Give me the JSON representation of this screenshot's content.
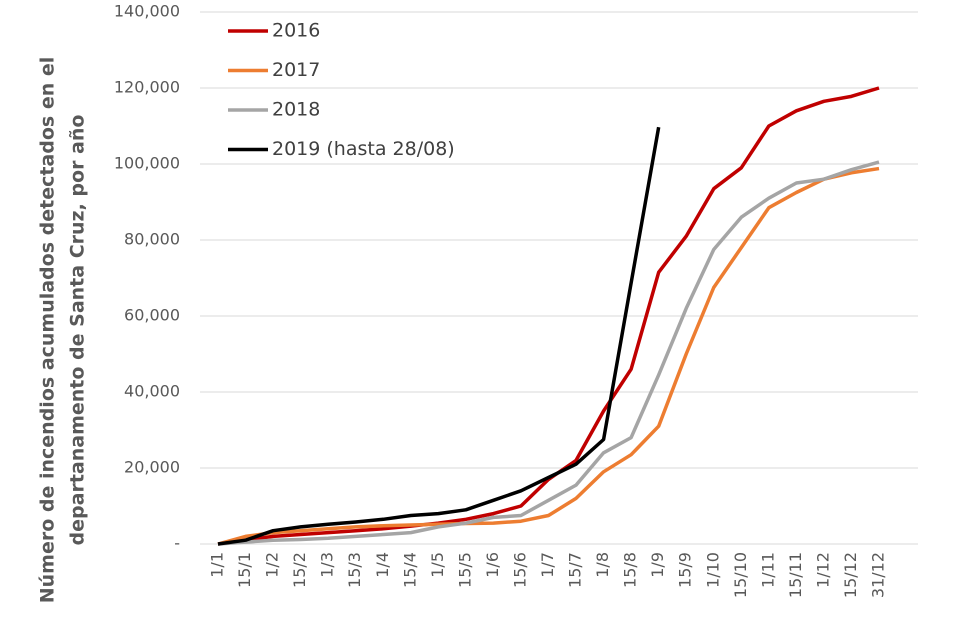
{
  "chart_data": {
    "type": "line",
    "ylabel": [
      "Número de incendios acumulados detectados en el",
      "departanamento de Santa Cruz, por año"
    ],
    "categories": [
      "1/1",
      "15/1",
      "1/2",
      "15/2",
      "1/3",
      "15/3",
      "1/4",
      "15/4",
      "1/5",
      "15/5",
      "1/6",
      "15/6",
      "1/7",
      "15/7",
      "1/8",
      "15/8",
      "1/9",
      "15/9",
      "1/10",
      "15/10",
      "1/11",
      "15/11",
      "1/12",
      "15/12",
      "31/12"
    ],
    "series": [
      {
        "name": "2016",
        "color": "#c00000",
        "values": [
          0,
          1000,
          2000,
          2500,
          3000,
          3500,
          4000,
          4700,
          5500,
          6500,
          8000,
          10000,
          17000,
          22000,
          35000,
          46000,
          71500,
          81000,
          93500,
          99000,
          110000,
          114000,
          116500,
          117800,
          120000
        ]
      },
      {
        "name": "2017",
        "color": "#ed7d31",
        "values": [
          0,
          2000,
          3000,
          3500,
          4000,
          4500,
          4800,
          5000,
          5200,
          5400,
          5500,
          6000,
          7500,
          12000,
          19000,
          23500,
          31000,
          50000,
          67500,
          78000,
          88500,
          92500,
          96000,
          97700,
          98800
        ]
      },
      {
        "name": "2018",
        "color": "#a5a5a5",
        "values": [
          0,
          500,
          1000,
          1200,
          1500,
          2000,
          2500,
          3000,
          4500,
          5500,
          7000,
          7500,
          11500,
          15500,
          24000,
          28000,
          44500,
          62000,
          77500,
          86000,
          91000,
          95000,
          96000,
          98500,
          100500
        ]
      },
      {
        "name": "2019 (hasta 28/08)",
        "color": "#000000",
        "values": [
          0,
          1000,
          3500,
          4500,
          5200,
          5800,
          6500,
          7500,
          8000,
          9000,
          11500,
          14000,
          17500,
          21000,
          27500,
          68700,
          109700,
          null,
          null,
          null,
          null,
          null,
          null,
          null,
          null
        ]
      }
    ],
    "ylim": [
      0,
      140000
    ],
    "yticks": [
      {
        "value": 0,
        "label": "-"
      },
      {
        "value": 20000,
        "label": "20,000"
      },
      {
        "value": 40000,
        "label": "40,000"
      },
      {
        "value": 60000,
        "label": "60,000"
      },
      {
        "value": 80000,
        "label": "80,000"
      },
      {
        "value": 100000,
        "label": "100,000"
      },
      {
        "value": 120000,
        "label": "120,000"
      },
      {
        "value": 140000,
        "label": "140,000"
      }
    ],
    "grid": true,
    "legend": "top-left"
  }
}
